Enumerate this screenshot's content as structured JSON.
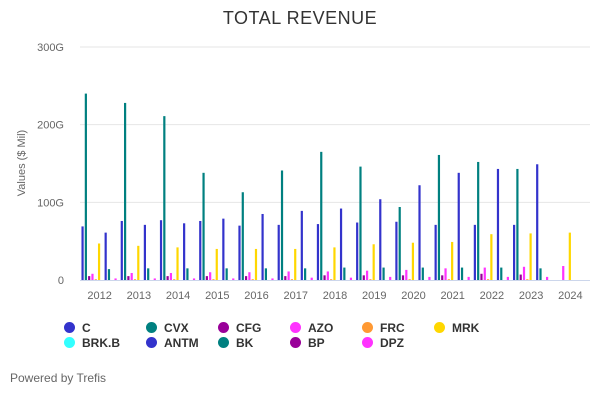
{
  "chart_data": {
    "type": "bar",
    "title": "TOTAL REVENUE",
    "ylabel": "Values ($ Mil)",
    "xlabel": "",
    "ylim": [
      0,
      300
    ],
    "yticks": [
      "0",
      "100G",
      "200G",
      "300G"
    ],
    "ytick_values": [
      0,
      100,
      200,
      300
    ],
    "grid": true,
    "legend_position": "bottom",
    "categories": [
      "2012",
      "2013",
      "2014",
      "2015",
      "2016",
      "2017",
      "2018",
      "2019",
      "2020",
      "2021",
      "2022",
      "2023",
      "2024"
    ],
    "series": [
      {
        "name": "C",
        "color": "#3333cc",
        "values": [
          69,
          76,
          77,
          76,
          70,
          71,
          72,
          74,
          75,
          71,
          71,
          71,
          null
        ]
      },
      {
        "name": "CVX",
        "color": "#008080",
        "values": [
          240,
          228,
          211,
          138,
          113,
          141,
          165,
          146,
          94,
          161,
          152,
          143,
          null
        ]
      },
      {
        "name": "CFG",
        "color": "#990099",
        "values": [
          5,
          5,
          5,
          5,
          5,
          5,
          6,
          6,
          6,
          6,
          8,
          7,
          null
        ]
      },
      {
        "name": "AZO",
        "color": "#ff33ff",
        "values": [
          8,
          9,
          9,
          10,
          10,
          11,
          11,
          12,
          13,
          15,
          16,
          17,
          18
        ]
      },
      {
        "name": "FRC",
        "color": "#ff9933",
        "values": [
          1,
          1,
          1,
          1,
          1,
          1,
          1,
          1,
          1,
          1,
          1,
          1,
          null
        ]
      },
      {
        "name": "MRK",
        "color": "#ffd700",
        "values": [
          47,
          44,
          42,
          40,
          40,
          40,
          42,
          46,
          48,
          49,
          59,
          60,
          61
        ]
      },
      {
        "name": "BRK.B",
        "color": "#33ffff",
        "values": [
          null,
          null,
          null,
          null,
          null,
          null,
          null,
          null,
          null,
          null,
          null,
          null,
          null
        ]
      },
      {
        "name": "ANTM",
        "color": "#3333cc",
        "values": [
          61,
          71,
          73,
          79,
          85,
          89,
          92,
          104,
          122,
          138,
          143,
          149,
          null
        ]
      },
      {
        "name": "BK",
        "color": "#008080",
        "values": [
          14,
          15,
          15,
          15,
          15,
          15,
          16,
          16,
          16,
          16,
          16,
          15,
          null
        ]
      },
      {
        "name": "BP",
        "color": "#990099",
        "values": [
          null,
          null,
          null,
          null,
          null,
          null,
          null,
          null,
          null,
          null,
          null,
          null,
          null
        ]
      },
      {
        "name": "DPZ",
        "color": "#ff33ff",
        "values": [
          2,
          2,
          2,
          2,
          2,
          3,
          3,
          4,
          4,
          4,
          4,
          4,
          null
        ]
      }
    ]
  },
  "footer": "Powered by Trefis"
}
